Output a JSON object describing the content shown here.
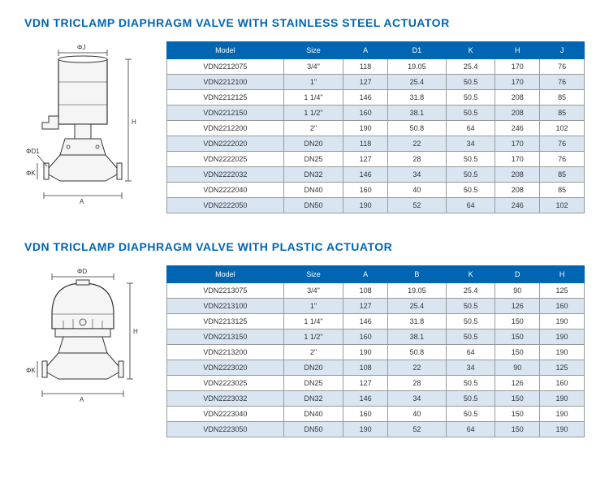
{
  "section1": {
    "title": "VDN TRICLAMP DIAPHRAGM VALVE WITH STAINLESS STEEL ACTUATOR",
    "diagram": {
      "labels": {
        "phiJ": "ΦJ",
        "H": "H",
        "D1": "ΦD1",
        "phiK": "ΦK",
        "A": "A"
      }
    },
    "table": {
      "columns": [
        "Model",
        "Size",
        "A",
        "D1",
        "K",
        "H",
        "J"
      ],
      "rows": [
        [
          "VDN2212075",
          "3/4\"",
          "118",
          "19.05",
          "25.4",
          "170",
          "76"
        ],
        [
          "VDN2212100",
          "1\"",
          "127",
          "25.4",
          "50.5",
          "170",
          "76"
        ],
        [
          "VDN2212125",
          "1 1/4\"",
          "146",
          "31.8",
          "50.5",
          "208",
          "85"
        ],
        [
          "VDN2212150",
          "1 1/2\"",
          "160",
          "38.1",
          "50.5",
          "208",
          "85"
        ],
        [
          "VDN2212200",
          "2\"",
          "190",
          "50.8",
          "64",
          "246",
          "102"
        ],
        [
          "VDN2222020",
          "DN20",
          "118",
          "22",
          "34",
          "170",
          "76"
        ],
        [
          "VDN2222025",
          "DN25",
          "127",
          "28",
          "50.5",
          "170",
          "76"
        ],
        [
          "VDN2222032",
          "DN32",
          "146",
          "34",
          "50.5",
          "208",
          "85"
        ],
        [
          "VDN2222040",
          "DN40",
          "160",
          "40",
          "50.5",
          "208",
          "85"
        ],
        [
          "VDN2222050",
          "DN50",
          "190",
          "52",
          "64",
          "246",
          "102"
        ]
      ]
    }
  },
  "section2": {
    "title": "VDN TRICLAMP DIAPHRAGM VALVE WITH PLASTIC ACTUATOR",
    "diagram": {
      "labels": {
        "phiD": "ΦD",
        "H": "H",
        "phiK": "ΦK",
        "A": "A"
      }
    },
    "table": {
      "columns": [
        "Model",
        "Size",
        "A",
        "B",
        "K",
        "D",
        "H"
      ],
      "rows": [
        [
          "VDN2213075",
          "3/4\"",
          "108",
          "19.05",
          "25.4",
          "90",
          "125"
        ],
        [
          "VDN2213100",
          "1\"",
          "127",
          "25.4",
          "50.5",
          "126",
          "160"
        ],
        [
          "VDN2213125",
          "1 1/4\"",
          "146",
          "31.8",
          "50.5",
          "150",
          "190"
        ],
        [
          "VDN2213150",
          "1 1/2\"",
          "160",
          "38.1",
          "50.5",
          "150",
          "190"
        ],
        [
          "VDN2213200",
          "2\"",
          "190",
          "50.8",
          "64",
          "150",
          "190"
        ],
        [
          "VDN2223020",
          "DN20",
          "108",
          "22",
          "34",
          "90",
          "125"
        ],
        [
          "VDN2223025",
          "DN25",
          "127",
          "28",
          "50.5",
          "126",
          "160"
        ],
        [
          "VDN2223032",
          "DN32",
          "146",
          "34",
          "50.5",
          "150",
          "190"
        ],
        [
          "VDN2223040",
          "DN40",
          "160",
          "40",
          "50.5",
          "150",
          "190"
        ],
        [
          "VDN2223050",
          "DN50",
          "190",
          "52",
          "64",
          "150",
          "190"
        ]
      ]
    }
  },
  "style": {
    "header_bg": "#0066b3",
    "alt_row_bg": "#d9e6f2",
    "border_color": "#999999",
    "title_color": "#0066b3"
  }
}
